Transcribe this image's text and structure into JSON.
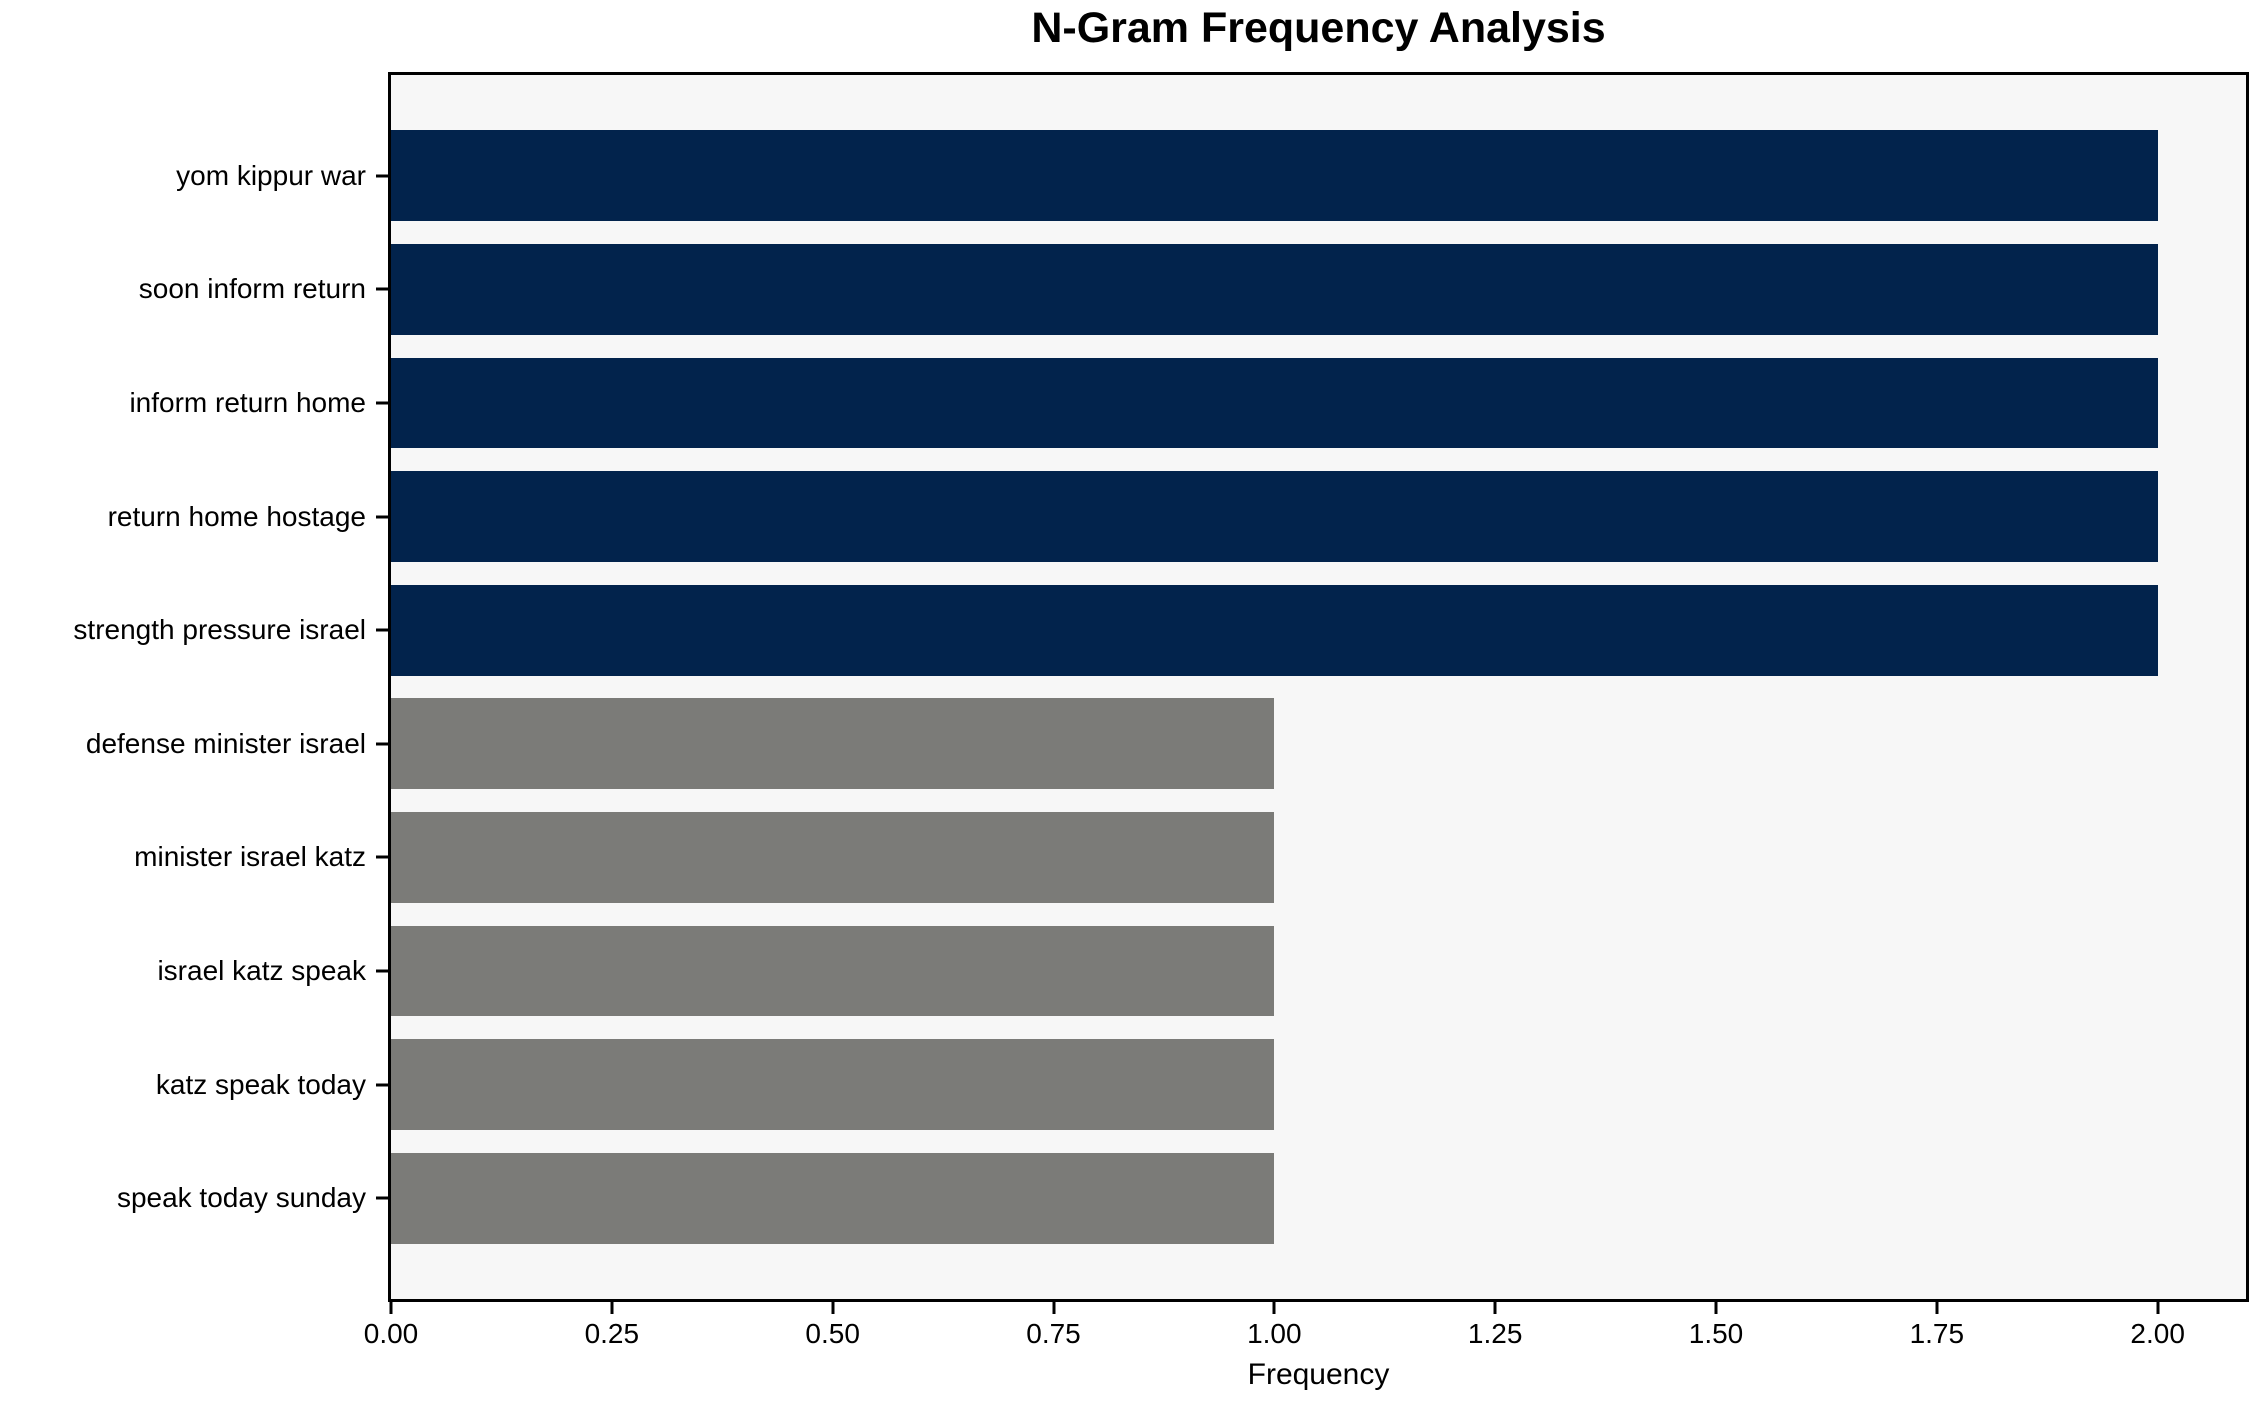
{
  "chart_data": {
    "type": "bar",
    "orientation": "horizontal",
    "title": "N-Gram Frequency Analysis",
    "xlabel": "Frequency",
    "ylabel": "",
    "categories": [
      "yom kippur war",
      "soon inform return",
      "inform return home",
      "return home hostage",
      "strength pressure israel",
      "defense minister israel",
      "minister israel katz",
      "israel katz speak",
      "katz speak today",
      "speak today sunday"
    ],
    "values": [
      2,
      2,
      2,
      2,
      2,
      1,
      1,
      1,
      1,
      1
    ],
    "bar_colors": [
      "#02234c",
      "#02234c",
      "#02234c",
      "#02234c",
      "#02234c",
      "#7b7b78",
      "#7b7b78",
      "#7b7b78",
      "#7b7b78",
      "#7b7b78"
    ],
    "xlim": [
      0,
      2.1
    ],
    "xticks": [
      {
        "value": 0.0,
        "label": "0.00"
      },
      {
        "value": 0.25,
        "label": "0.25"
      },
      {
        "value": 0.5,
        "label": "0.50"
      },
      {
        "value": 0.75,
        "label": "0.75"
      },
      {
        "value": 1.0,
        "label": "1.00"
      },
      {
        "value": 1.25,
        "label": "1.25"
      },
      {
        "value": 1.5,
        "label": "1.50"
      },
      {
        "value": 1.75,
        "label": "1.75"
      },
      {
        "value": 2.0,
        "label": "2.00"
      }
    ],
    "grid": false,
    "legend": null,
    "colors": {
      "bar_high_frequency": "#02234c",
      "bar_low_frequency": "#7b7b78",
      "plot_background": "#f7f7f7",
      "figure_background": "#ffffff",
      "spine": "#000000",
      "text": "#000000"
    }
  }
}
